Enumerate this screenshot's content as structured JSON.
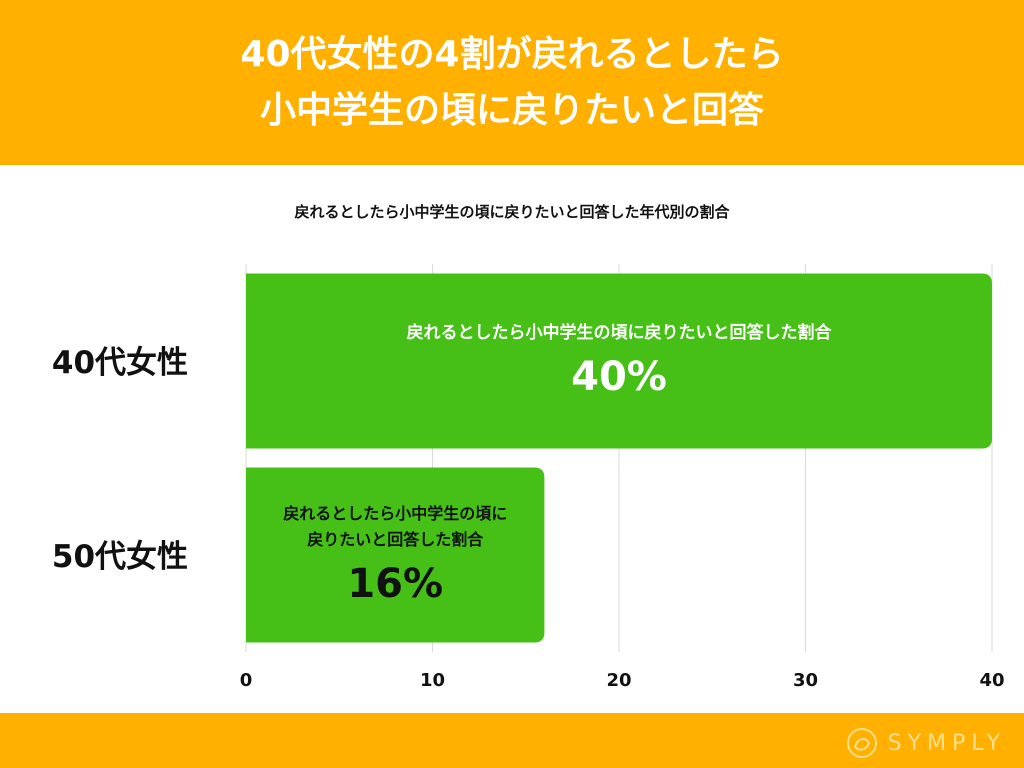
{
  "header": {
    "title_line1": "40代女性の4割が戻れるとしたら",
    "title_line2": "小中学生の頃に戻りたいと回答"
  },
  "chart_data": {
    "type": "bar",
    "orientation": "horizontal",
    "title": "戻れるとしたら小中学生の頃に戻りたいと回答した年代別の割合",
    "categories": [
      "40代女性",
      "50代女性"
    ],
    "values": [
      40,
      16
    ],
    "bar_labels": [
      "戻れるとしたら小中学生の頃に戻りたいと回答した割合",
      "戻れるとしたら小中学生の頃に\n戻りたいと回答した割合"
    ],
    "value_labels": [
      "40%",
      "16%"
    ],
    "xlim": [
      0,
      40
    ],
    "xticks": [
      "0",
      "10",
      "20",
      "30",
      "40"
    ],
    "grid": true,
    "bar_color": "#46c017"
  },
  "footer": {
    "logo_text": "SYMPLY",
    "color": "#ffb000"
  }
}
